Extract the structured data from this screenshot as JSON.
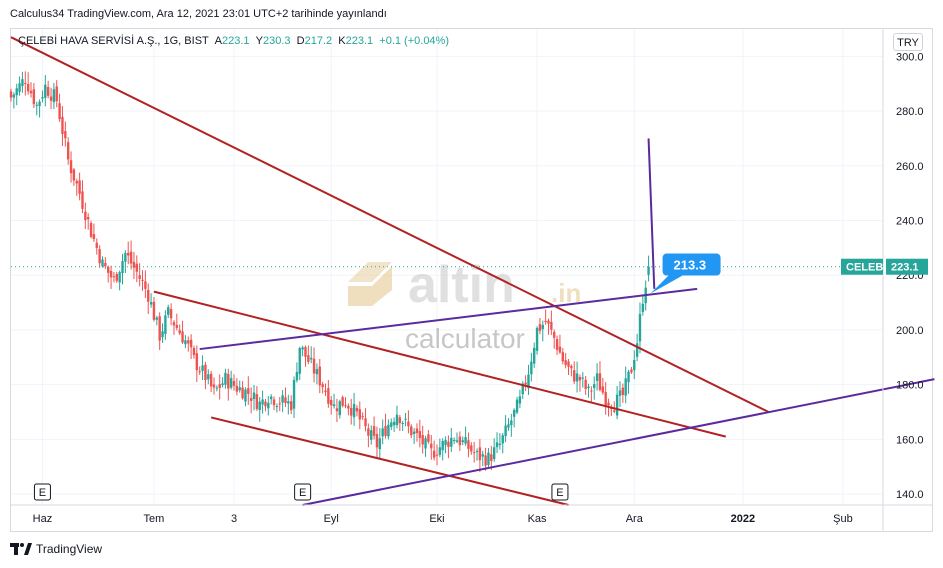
{
  "header": {
    "published": "Calculus34 TradingView.com, Ara 12, 2021 23:01 UTC+2 tarihinde yayınlandı"
  },
  "legend": {
    "symbol": "ÇELEBİ HAVA SERVİSİ A.Ş., 1G, BIST",
    "open_label": "A",
    "open": "223.1",
    "high_label": "Y",
    "high": "230.3",
    "low_label": "D",
    "low": "217.2",
    "close_label": "K",
    "close": "223.1",
    "change": "+0.1 (+0.04%)"
  },
  "currency": "TRY",
  "price_label": {
    "ticker": "CELEBI",
    "value": "223.1"
  },
  "callout": {
    "text": "213.3"
  },
  "watermark": {
    "brand": "altin",
    "suffix": ".in",
    "sub": "calculator"
  },
  "footer": {
    "brand": "TradingView"
  },
  "earnings_marker": "E",
  "colors": {
    "up": "#26a69a",
    "down": "#ef5350",
    "trend_red": "#b22222",
    "trend_purple": "#5b2a9e",
    "callout": "#2196f3",
    "label_bg": "#26a69a"
  },
  "chart_data": {
    "type": "candlestick",
    "x_axis_labels": [
      "Haz",
      "Tem",
      "3",
      "Eyl",
      "Eki",
      "Kas",
      "Ara",
      "2022",
      "Şub"
    ],
    "y_axis_labels": [
      "300.0",
      "280.0",
      "260.0",
      "240.0",
      "220.0",
      "200.0",
      "180.0",
      "160.0",
      "140.0"
    ],
    "ylim": [
      136,
      310
    ],
    "last_close": 223.1,
    "path_points": [
      {
        "t": 0,
        "p": 285
      },
      {
        "t": 5,
        "p": 292
      },
      {
        "t": 9,
        "p": 282
      },
      {
        "t": 12,
        "p": 289
      },
      {
        "t": 16,
        "p": 284
      },
      {
        "t": 20,
        "p": 262
      },
      {
        "t": 24,
        "p": 250
      },
      {
        "t": 28,
        "p": 236
      },
      {
        "t": 32,
        "p": 224
      },
      {
        "t": 36,
        "p": 218
      },
      {
        "t": 40,
        "p": 228
      },
      {
        "t": 44,
        "p": 221
      },
      {
        "t": 48,
        "p": 213
      },
      {
        "t": 52,
        "p": 198
      },
      {
        "t": 55,
        "p": 206
      },
      {
        "t": 58,
        "p": 201
      },
      {
        "t": 61,
        "p": 196
      },
      {
        "t": 64,
        "p": 189
      },
      {
        "t": 68,
        "p": 183
      },
      {
        "t": 71,
        "p": 177
      },
      {
        "t": 75,
        "p": 182
      },
      {
        "t": 79,
        "p": 179
      },
      {
        "t": 83,
        "p": 177
      },
      {
        "t": 87,
        "p": 173
      },
      {
        "t": 90,
        "p": 176
      },
      {
        "t": 94,
        "p": 174
      },
      {
        "t": 98,
        "p": 173
      },
      {
        "t": 101,
        "p": 194
      },
      {
        "t": 105,
        "p": 187
      },
      {
        "t": 109,
        "p": 180
      },
      {
        "t": 113,
        "p": 172
      },
      {
        "t": 117,
        "p": 174
      },
      {
        "t": 121,
        "p": 169
      },
      {
        "t": 125,
        "p": 162
      },
      {
        "t": 128,
        "p": 158
      },
      {
        "t": 131,
        "p": 164
      },
      {
        "t": 135,
        "p": 170
      },
      {
        "t": 139,
        "p": 164
      },
      {
        "t": 143,
        "p": 160
      },
      {
        "t": 147,
        "p": 155
      },
      {
        "t": 151,
        "p": 158
      },
      {
        "t": 155,
        "p": 161
      },
      {
        "t": 159,
        "p": 158
      },
      {
        "t": 163,
        "p": 154
      },
      {
        "t": 167,
        "p": 153
      },
      {
        "t": 171,
        "p": 158
      },
      {
        "t": 175,
        "p": 167
      },
      {
        "t": 178,
        "p": 174
      },
      {
        "t": 181,
        "p": 185
      },
      {
        "t": 184,
        "p": 200
      },
      {
        "t": 187,
        "p": 203
      },
      {
        "t": 190,
        "p": 197
      },
      {
        "t": 193,
        "p": 189
      },
      {
        "t": 196,
        "p": 184
      },
      {
        "t": 199,
        "p": 182
      },
      {
        "t": 202,
        "p": 177
      },
      {
        "t": 205,
        "p": 182
      },
      {
        "t": 208,
        "p": 175
      },
      {
        "t": 211,
        "p": 173
      },
      {
        "t": 214,
        "p": 176
      },
      {
        "t": 217,
        "p": 186
      },
      {
        "t": 219,
        "p": 196
      },
      {
        "t": 221,
        "p": 212
      },
      {
        "t": 223,
        "p": 223.1
      }
    ],
    "date_axis": {
      "t0": 0,
      "t1": 305,
      "ticks_t": [
        11,
        50,
        78,
        112,
        149,
        184,
        218,
        256,
        291
      ]
    },
    "trendlines": [
      {
        "color": "red",
        "from": {
          "t": 0,
          "p": 307
        },
        "to": {
          "t": 265,
          "p": 170
        }
      },
      {
        "color": "red",
        "from": {
          "t": 50,
          "p": 214
        },
        "to": {
          "t": 250,
          "p": 161
        }
      },
      {
        "color": "red",
        "from": {
          "t": 70,
          "p": 168
        },
        "to": {
          "t": 195,
          "p": 136
        }
      },
      {
        "color": "purple",
        "from": {
          "t": 66,
          "p": 193
        },
        "to": {
          "t": 240,
          "p": 215
        }
      },
      {
        "color": "purple",
        "from": {
          "t": 102,
          "p": 136
        },
        "to": {
          "t": 323,
          "p": 182
        }
      },
      {
        "color": "purple",
        "from": {
          "t": 223,
          "p": 270
        },
        "to": {
          "t": 225,
          "p": 215
        }
      }
    ],
    "earnings_t": [
      11,
      102,
      192
    ]
  }
}
